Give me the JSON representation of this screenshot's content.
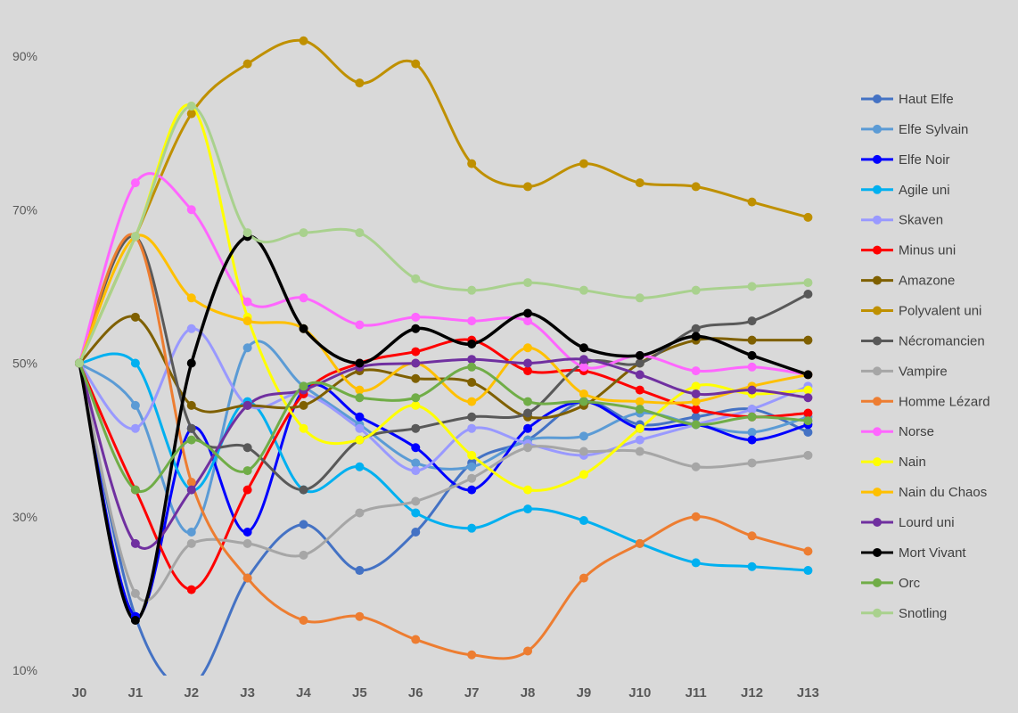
{
  "chart_data": {
    "type": "line",
    "smooth": true,
    "grid": false,
    "legend_position": "right",
    "categories": [
      "J0",
      "J1",
      "J2",
      "J3",
      "J4",
      "J5",
      "J6",
      "J7",
      "J8",
      "J9",
      "J10",
      "J11",
      "J12",
      "J13"
    ],
    "y_ticks": [
      10,
      30,
      50,
      70,
      90
    ],
    "y_tick_labels": [
      "10%",
      "30%",
      "50%",
      "70%",
      "90%"
    ],
    "ylim": [
      10,
      90
    ],
    "series": [
      {
        "name": "Haut Elfe",
        "color": "#4472c4",
        "values": [
          50,
          17,
          8,
          22,
          29,
          23,
          28,
          37,
          40,
          45,
          42,
          43,
          44,
          41
        ]
      },
      {
        "name": "Elfe Sylvain",
        "color": "#5b9bd5",
        "values": [
          50,
          44.5,
          28,
          52,
          47,
          42,
          37,
          36.5,
          40,
          40.5,
          43.5,
          42,
          41,
          43
        ]
      },
      {
        "name": "Elfe Noir",
        "color": "#0000ff",
        "values": [
          50,
          17,
          41.5,
          28,
          46.5,
          43,
          39,
          33.5,
          41.5,
          45,
          41.5,
          42,
          40,
          42
        ]
      },
      {
        "name": "Agile uni",
        "color": "#00b0f0",
        "values": [
          50,
          50,
          33.5,
          45,
          33.5,
          36.5,
          30.5,
          28.5,
          31,
          29.5,
          26.5,
          24,
          23.5,
          23
        ]
      },
      {
        "name": "Skaven",
        "color": "#9999ff",
        "values": [
          50,
          41.5,
          54.5,
          44.5,
          46,
          41.5,
          36,
          41.5,
          39.5,
          38,
          40,
          42,
          44,
          47
        ]
      },
      {
        "name": "Minus uni",
        "color": "#ff0000",
        "values": [
          50,
          33.5,
          20.5,
          33.5,
          46,
          50,
          51.5,
          53,
          49,
          49,
          46.5,
          44,
          43,
          43.5
        ]
      },
      {
        "name": "Amazone",
        "color": "#7f6000",
        "values": [
          50,
          56,
          44.5,
          44.5,
          44.5,
          49,
          48,
          47.5,
          43,
          44.5,
          50,
          53,
          53,
          53
        ]
      },
      {
        "name": "Polyvalent uni",
        "color": "#bf9000",
        "values": [
          50,
          66.5,
          82.5,
          89,
          92,
          86.5,
          89,
          76,
          73,
          76,
          73.5,
          73,
          71,
          69
        ]
      },
      {
        "name": "Nécromancien",
        "color": "#595959",
        "values": [
          50,
          66.5,
          41.5,
          39,
          33.5,
          40,
          41.5,
          43,
          43.5,
          50,
          50,
          54.5,
          55.5,
          59
        ]
      },
      {
        "name": "Vampire",
        "color": "#a6a6a6",
        "values": [
          50,
          20,
          26.5,
          26.5,
          25,
          30.5,
          32,
          35,
          39,
          38.5,
          38.5,
          36.5,
          37,
          38
        ]
      },
      {
        "name": "Homme Lézard",
        "color": "#ed7d31",
        "values": [
          50,
          66.5,
          34.5,
          22,
          16.5,
          17,
          14,
          12,
          12.5,
          22,
          26.5,
          30,
          27.5,
          25.5
        ]
      },
      {
        "name": "Norse",
        "color": "#ff66ff",
        "values": [
          50,
          73.5,
          70,
          58,
          58.5,
          55,
          56,
          55.5,
          55.5,
          49.5,
          51,
          49,
          49.5,
          48.5
        ]
      },
      {
        "name": "Nain",
        "color": "#ffff00",
        "values": [
          50,
          66.5,
          83.5,
          56,
          41.5,
          40,
          44.5,
          38,
          33.5,
          35.5,
          41.5,
          47,
          46,
          46.5
        ]
      },
      {
        "name": "Nain du Chaos",
        "color": "#ffc000",
        "values": [
          50,
          66.5,
          58.5,
          55.5,
          54.5,
          46.5,
          50,
          45,
          52,
          46,
          45,
          45,
          47,
          48.5
        ]
      },
      {
        "name": "Lourd uni",
        "color": "#7030a0",
        "values": [
          50,
          26.5,
          33.5,
          44.5,
          46.5,
          49.5,
          50,
          50.5,
          50,
          50.5,
          48.5,
          46,
          46.5,
          45.5
        ]
      },
      {
        "name": "Mort Vivant",
        "color": "#000000",
        "values": [
          50,
          16.5,
          50,
          66.5,
          54.5,
          50,
          54.5,
          52.5,
          56.5,
          52,
          51,
          53.5,
          51,
          48.5
        ]
      },
      {
        "name": "Orc",
        "color": "#70ad47",
        "values": [
          50,
          33.5,
          40,
          36,
          47,
          45.5,
          45.5,
          49.5,
          45,
          45,
          44,
          42,
          43,
          42.5
        ]
      },
      {
        "name": "Snotling",
        "color": "#a9d18e",
        "values": [
          50,
          66.5,
          83.5,
          67,
          67,
          67,
          61,
          59.5,
          60.5,
          59.5,
          58.5,
          59.5,
          60,
          60.5
        ]
      }
    ]
  }
}
